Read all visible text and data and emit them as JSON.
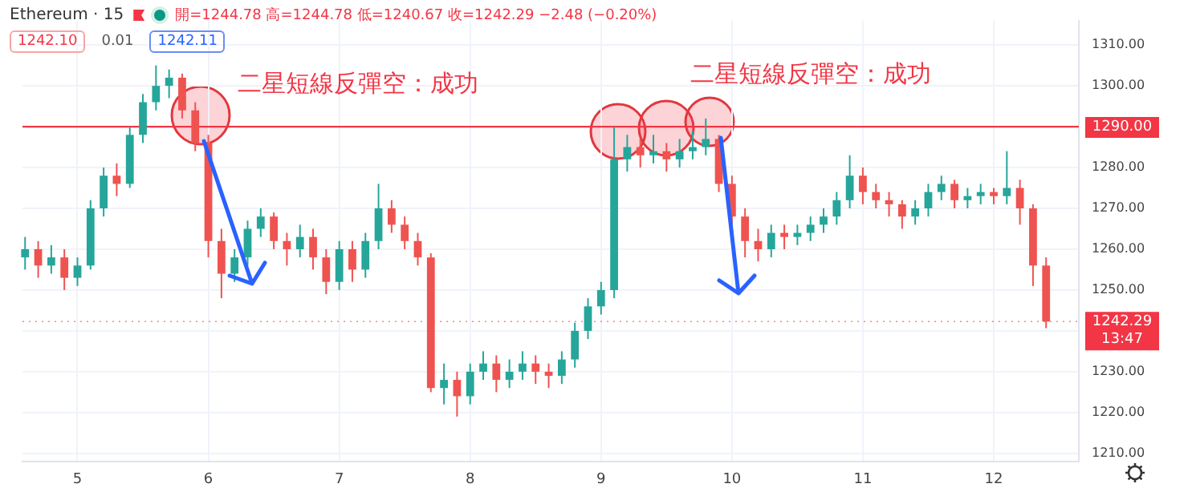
{
  "chart_data": {
    "type": "candlestick",
    "title": "Ethereum · 15",
    "x": [
      4.6,
      4.7,
      4.8,
      4.9,
      5.0,
      5.1,
      5.2,
      5.3,
      5.4,
      5.5,
      5.6,
      5.7,
      5.8,
      5.9,
      6.0,
      6.1,
      6.2,
      6.3,
      6.4,
      6.5,
      6.6,
      6.7,
      6.8,
      6.9,
      7.0,
      7.1,
      7.2,
      7.3,
      7.4,
      7.5,
      7.6,
      7.7,
      7.8,
      7.9,
      8.0,
      8.1,
      8.2,
      8.3,
      8.4,
      8.5,
      8.6,
      8.7,
      8.8,
      8.9,
      9.0,
      9.1,
      9.2,
      9.3,
      9.4,
      9.5,
      9.6,
      9.7,
      9.8,
      9.9,
      10.0,
      10.1,
      10.2,
      10.3,
      10.4,
      10.5,
      10.6,
      10.7,
      10.8,
      10.9,
      11.0,
      11.1,
      11.2,
      11.3,
      11.4,
      11.5,
      11.6,
      11.7,
      11.8,
      11.9,
      12.0,
      12.1,
      12.2,
      12.3,
      12.4
    ],
    "ohlc": [
      [
        1258,
        1263,
        1255,
        1260
      ],
      [
        1260,
        1262,
        1253,
        1256
      ],
      [
        1256,
        1261,
        1254,
        1258
      ],
      [
        1258,
        1260,
        1250,
        1253
      ],
      [
        1253,
        1258,
        1251,
        1256
      ],
      [
        1256,
        1272,
        1255,
        1270
      ],
      [
        1270,
        1280,
        1268,
        1278
      ],
      [
        1278,
        1281,
        1273,
        1276
      ],
      [
        1276,
        1290,
        1275,
        1288
      ],
      [
        1288,
        1298,
        1286,
        1296
      ],
      [
        1296,
        1305,
        1294,
        1300
      ],
      [
        1300,
        1304,
        1297,
        1302
      ],
      [
        1302,
        1303,
        1292,
        1294
      ],
      [
        1294,
        1296,
        1284,
        1286
      ],
      [
        1286,
        1288,
        1258,
        1262
      ],
      [
        1262,
        1265,
        1248,
        1254
      ],
      [
        1254,
        1260,
        1252,
        1258
      ],
      [
        1258,
        1267,
        1256,
        1265
      ],
      [
        1265,
        1270,
        1263,
        1268
      ],
      [
        1268,
        1269,
        1260,
        1262
      ],
      [
        1262,
        1264,
        1256,
        1260
      ],
      [
        1260,
        1266,
        1258,
        1263
      ],
      [
        1263,
        1265,
        1255,
        1258
      ],
      [
        1258,
        1260,
        1249,
        1252
      ],
      [
        1252,
        1262,
        1250,
        1260
      ],
      [
        1260,
        1262,
        1252,
        1255
      ],
      [
        1255,
        1264,
        1253,
        1262
      ],
      [
        1262,
        1276,
        1260,
        1270
      ],
      [
        1270,
        1272,
        1264,
        1266
      ],
      [
        1266,
        1268,
        1260,
        1262
      ],
      [
        1262,
        1264,
        1256,
        1258
      ],
      [
        1258,
        1259,
        1225,
        1226
      ],
      [
        1226,
        1232,
        1222,
        1228
      ],
      [
        1228,
        1230,
        1219,
        1224
      ],
      [
        1224,
        1232,
        1222,
        1230
      ],
      [
        1230,
        1235,
        1228,
        1232
      ],
      [
        1232,
        1234,
        1225,
        1228
      ],
      [
        1228,
        1233,
        1226,
        1230
      ],
      [
        1230,
        1235,
        1228,
        1232
      ],
      [
        1232,
        1234,
        1227,
        1230
      ],
      [
        1230,
        1232,
        1226,
        1229
      ],
      [
        1229,
        1235,
        1227,
        1233
      ],
      [
        1233,
        1242,
        1231,
        1240
      ],
      [
        1240,
        1248,
        1238,
        1246
      ],
      [
        1246,
        1252,
        1244,
        1250
      ],
      [
        1250,
        1290,
        1248,
        1282
      ],
      [
        1282,
        1288,
        1279,
        1285
      ],
      [
        1285,
        1287,
        1280,
        1283
      ],
      [
        1283,
        1288,
        1281,
        1284
      ],
      [
        1284,
        1286,
        1279,
        1282
      ],
      [
        1282,
        1287,
        1280,
        1284
      ],
      [
        1284,
        1289,
        1282,
        1285
      ],
      [
        1285,
        1292,
        1283,
        1287
      ],
      [
        1287,
        1288,
        1274,
        1276
      ],
      [
        1276,
        1278,
        1266,
        1268
      ],
      [
        1268,
        1270,
        1258,
        1262
      ],
      [
        1262,
        1265,
        1257,
        1260
      ],
      [
        1260,
        1266,
        1258,
        1264
      ],
      [
        1264,
        1266,
        1260,
        1263
      ],
      [
        1263,
        1266,
        1261,
        1264
      ],
      [
        1264,
        1268,
        1262,
        1266
      ],
      [
        1266,
        1270,
        1264,
        1268
      ],
      [
        1268,
        1274,
        1266,
        1272
      ],
      [
        1272,
        1283,
        1270,
        1278
      ],
      [
        1278,
        1280,
        1271,
        1274
      ],
      [
        1274,
        1276,
        1270,
        1272
      ],
      [
        1272,
        1274,
        1268,
        1271
      ],
      [
        1271,
        1272,
        1265,
        1268
      ],
      [
        1268,
        1272,
        1266,
        1270
      ],
      [
        1270,
        1276,
        1268,
        1274
      ],
      [
        1274,
        1278,
        1272,
        1276
      ],
      [
        1276,
        1277,
        1270,
        1272
      ],
      [
        1272,
        1275,
        1270,
        1273
      ],
      [
        1273,
        1276,
        1271,
        1274
      ],
      [
        1274,
        1275,
        1271,
        1273
      ],
      [
        1273,
        1284,
        1271,
        1275
      ],
      [
        1275,
        1277,
        1266,
        1270
      ],
      [
        1270,
        1271,
        1251,
        1256
      ],
      [
        1256,
        1258,
        1240.67,
        1242.29
      ]
    ],
    "xlim": [
      4.58,
      12.65
    ],
    "xticks": [
      5,
      6,
      7,
      8,
      9,
      10,
      11,
      12
    ],
    "ylim": [
      1208,
      1316
    ],
    "yticks": [
      {
        "value": 1210,
        "label": "1210.00"
      },
      {
        "value": 1220,
        "label": "1220.00"
      },
      {
        "value": 1230,
        "label": "1230.00"
      },
      {
        "value": 1240,
        "label": null
      },
      {
        "value": 1250,
        "label": "1250.00"
      },
      {
        "value": 1260,
        "label": "1260.00"
      },
      {
        "value": 1270,
        "label": "1270.00"
      },
      {
        "value": 1280,
        "label": "1280.00"
      },
      {
        "value": 1290,
        "label": null
      },
      {
        "value": 1300,
        "label": "1300.00"
      },
      {
        "value": 1310,
        "label": "1310.00"
      }
    ],
    "grid": true,
    "ref_lines": [
      {
        "axis": "y",
        "value": 1290,
        "label": "1290.00",
        "color": "#f23645"
      },
      {
        "axis": "y",
        "value": 1242.29,
        "label": "1242.29\n13:47",
        "color": "#f23645",
        "line_style": "dotted"
      }
    ],
    "annotations": [
      "開=1244.78 高=1244.78 低=1240.67 收=1242.29 −2.48 (−0.20%)",
      "1242.10",
      "0.01",
      "1242.11",
      "二星短線反彈空：成功",
      "二星短線反彈空：成功"
    ]
  }
}
